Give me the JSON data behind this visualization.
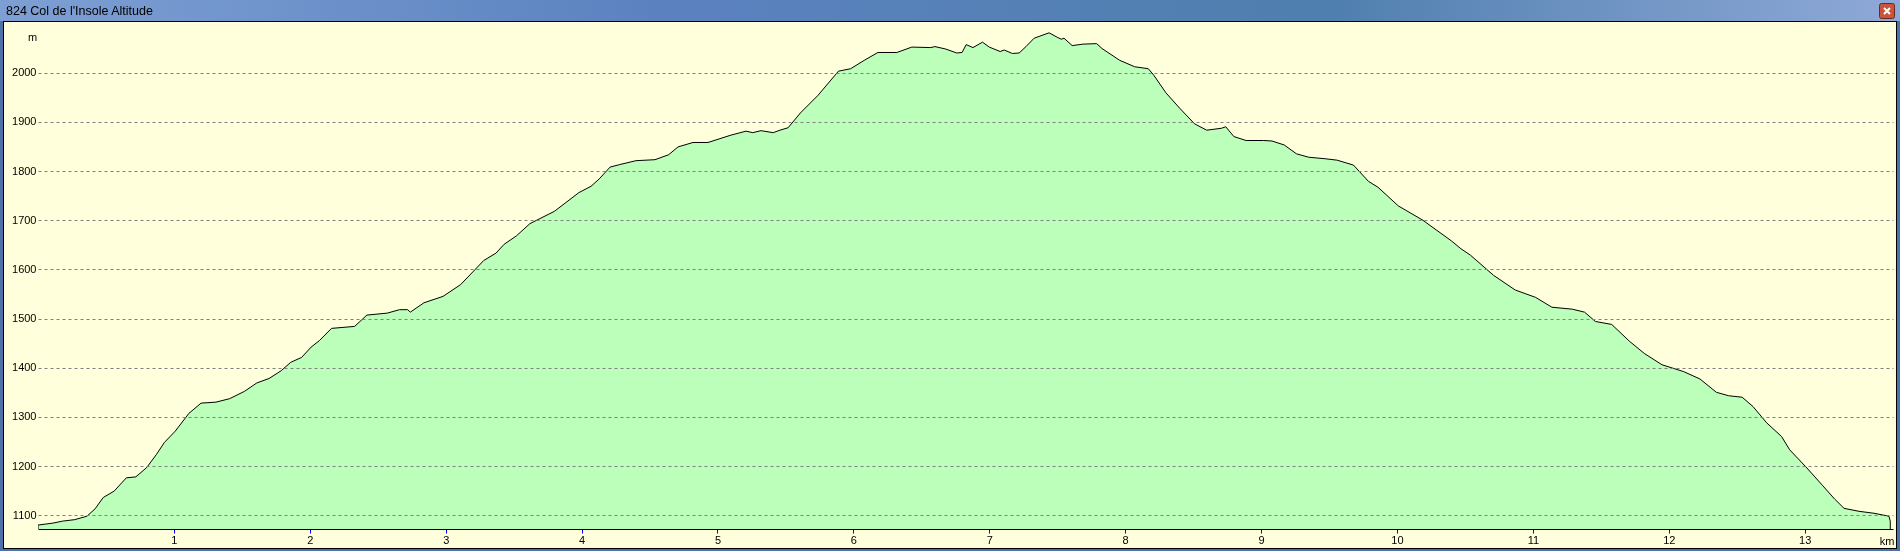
{
  "chart_data": {
    "type": "area",
    "title": "824 Col de l'Insole Altitude",
    "xlabel": "km",
    "ylabel": "m",
    "color": "#bbffbb",
    "x": [
      0,
      0.11,
      0.18,
      0.27,
      0.36,
      0.42,
      0.48,
      0.56,
      0.65,
      0.72,
      0.8,
      0.87,
      0.93,
      1.01,
      1.11,
      1.2,
      1.31,
      1.41,
      1.52,
      1.61,
      1.7,
      1.79,
      1.86,
      1.94,
      2.01,
      2.07,
      2.16,
      2.33,
      2.42,
      2.57,
      2.66,
      2.72,
      2.74,
      2.84,
      2.98,
      3.11,
      3.28,
      3.37,
      3.43,
      3.52,
      3.62,
      3.8,
      3.98,
      4.07,
      4.13,
      4.21,
      4.28,
      4.4,
      4.54,
      4.64,
      4.71,
      4.82,
      4.93,
      5.1,
      5.21,
      5.26,
      5.32,
      5.41,
      5.46,
      5.52,
      5.61,
      5.74,
      5.89,
      5.98,
      6.08,
      6.18,
      6.32,
      6.43,
      6.57,
      6.6,
      6.68,
      6.76,
      6.8,
      6.83,
      6.88,
      6.95,
      7,
      7.08,
      7.11,
      7.17,
      7.22,
      7.27,
      7.33,
      7.44,
      7.5,
      7.53,
      7.55,
      7.61,
      7.69,
      7.79,
      7.83,
      7.96,
      8.07,
      8.17,
      8.21,
      8.3,
      8.4,
      8.51,
      8.6,
      8.71,
      8.74,
      8.8,
      8.89,
      9.02,
      9.08,
      9.17,
      9.26,
      9.35,
      9.47,
      9.56,
      9.68,
      9.79,
      9.86,
      10.01,
      10.19,
      10.4,
      10.47,
      10.54,
      10.71,
      10.87,
      11.02,
      11.14,
      11.29,
      11.38,
      11.46,
      11.58,
      11.71,
      11.82,
      11.95,
      12.11,
      12.23,
      12.35,
      12.44,
      12.54,
      12.62,
      12.72,
      12.83,
      12.89,
      13.01,
      13.13,
      13.22,
      13.29,
      13.4,
      13.51,
      13.62,
      13.63
    ],
    "values": [
      1080,
      1084,
      1088,
      1091,
      1098,
      1113,
      1136,
      1149,
      1176,
      1178,
      1197,
      1223,
      1248,
      1271,
      1307,
      1328,
      1330,
      1337,
      1352,
      1369,
      1378,
      1394,
      1411,
      1421,
      1442,
      1455,
      1480,
      1484,
      1507,
      1511,
      1518,
      1518,
      1513,
      1532,
      1545,
      1569,
      1618,
      1633,
      1651,
      1668,
      1693,
      1718,
      1756,
      1769,
      1784,
      1808,
      1813,
      1821,
      1823,
      1833,
      1849,
      1858,
      1858,
      1873,
      1881,
      1878,
      1882,
      1878,
      1883,
      1888,
      1918,
      1954,
      2003,
      2008,
      2025,
      2041,
      2041,
      2052,
      2051,
      2053,
      2048,
      2040,
      2041,
      2057,
      2051,
      2062,
      2052,
      2043,
      2046,
      2039,
      2040,
      2053,
      2070,
      2081,
      2072,
      2068,
      2070,
      2055,
      2058,
      2059,
      2049,
      2025,
      2012,
      2008,
      1995,
      1959,
      1928,
      1896,
      1883,
      1887,
      1890,
      1870,
      1862,
      1862,
      1861,
      1853,
      1835,
      1828,
      1825,
      1822,
      1812,
      1779,
      1767,
      1729,
      1700,
      1658,
      1642,
      1629,
      1588,
      1558,
      1543,
      1523,
      1519,
      1513,
      1494,
      1488,
      1454,
      1429,
      1406,
      1392,
      1377,
      1350,
      1343,
      1340,
      1321,
      1288,
      1260,
      1233,
      1198,
      1161,
      1133,
      1114,
      1108,
      1104,
      1098,
      1088
    ],
    "xlim": [
      0,
      13.65
    ],
    "ylim": [
      1072,
      2103
    ],
    "xticks": [
      1,
      2,
      3,
      4,
      5,
      6,
      7,
      8,
      9,
      10,
      11,
      12,
      13
    ],
    "yticks": [
      1100,
      1200,
      1300,
      1400,
      1500,
      1600,
      1700,
      1800,
      1900,
      2000
    ],
    "grid": "y"
  }
}
